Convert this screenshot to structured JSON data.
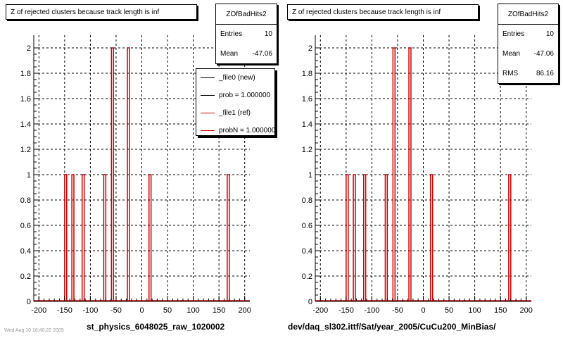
{
  "colors": {
    "ref": "#cc0000",
    "new": "#000000",
    "grid": "#000000"
  },
  "panels": [
    {
      "title": "Z of rejected clusters  because track length is inf",
      "xlabel": "st_physics_6048025_raw_1020002",
      "stats": {
        "name": "ZOfBadHits2",
        "rows": [
          {
            "label": "Entries",
            "value": "10"
          },
          {
            "label": "Mean",
            "value": "-47.06"
          }
        ]
      },
      "legend": [
        {
          "label": "_file0 (new)",
          "color": "#000000"
        },
        {
          "label": "prob = 1.000000",
          "color": "#000000"
        },
        {
          "label": "_file1 (ref)",
          "color": "#cc0000"
        },
        {
          "label": "probN = 1.000000",
          "color": "#cc0000"
        }
      ]
    },
    {
      "title": "Z of rejected clusters  because track length is inf",
      "xlabel": "dev/daq_sl302.ittf/Sat/year_2005/CuCu200_MinBias/",
      "stats": {
        "name": "ZOfBadHits2",
        "rows": [
          {
            "label": "Entries",
            "value": "10"
          },
          {
            "label": "Mean",
            "value": "-47.06"
          },
          {
            "label": "RMS",
            "value": "86.16"
          }
        ]
      },
      "legend": []
    }
  ],
  "footer": "Wed Aug 10 16:40:22 2005",
  "chart_data": [
    {
      "type": "bar",
      "title": "Z of rejected clusters  because track length is inf",
      "xlabel": "st_physics_6048025_raw_1020002",
      "xlim": [
        -210,
        210
      ],
      "ylim": [
        0,
        2.1
      ],
      "xticks": [
        "-200",
        "-150",
        "-100",
        "-50",
        "0",
        "50",
        "100",
        "150",
        "200"
      ],
      "yticks": [
        "0",
        "0.2",
        "0.4",
        "0.6",
        "0.8",
        "1",
        "1.2",
        "1.4",
        "1.6",
        "1.8",
        "2"
      ],
      "grid": true,
      "series": [
        {
          "name": "_file1 (ref)",
          "color": "#cc0000",
          "bins": [
            {
              "x": -148,
              "y": 1
            },
            {
              "x": -134,
              "y": 1
            },
            {
              "x": -114,
              "y": 1
            },
            {
              "x": -72,
              "y": 1
            },
            {
              "x": -57,
              "y": 2
            },
            {
              "x": -26,
              "y": 2
            },
            {
              "x": 16,
              "y": 1
            },
            {
              "x": 168,
              "y": 1
            }
          ]
        }
      ]
    },
    {
      "type": "bar",
      "title": "Z of rejected clusters  because track length is inf",
      "xlabel": "dev/daq_sl302.ittf/Sat/year_2005/CuCu200_MinBias/",
      "xlim": [
        -210,
        210
      ],
      "ylim": [
        0,
        2.1
      ],
      "xticks": [
        "-200",
        "-150",
        "-100",
        "-50",
        "0",
        "50",
        "100",
        "150",
        "200"
      ],
      "yticks": [
        "0",
        "0.2",
        "0.4",
        "0.6",
        "0.8",
        "1",
        "1.2",
        "1.4",
        "1.6",
        "1.8",
        "2"
      ],
      "grid": true,
      "series": [
        {
          "name": "_file1 (ref)",
          "color": "#cc0000",
          "bins": [
            {
              "x": -148,
              "y": 1
            },
            {
              "x": -134,
              "y": 1
            },
            {
              "x": -114,
              "y": 1
            },
            {
              "x": -72,
              "y": 1
            },
            {
              "x": -57,
              "y": 2
            },
            {
              "x": -26,
              "y": 2
            },
            {
              "x": 16,
              "y": 1
            },
            {
              "x": 168,
              "y": 1
            }
          ]
        }
      ]
    }
  ]
}
